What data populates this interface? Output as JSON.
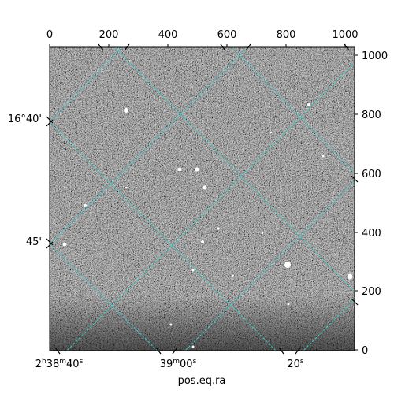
{
  "figure": {
    "xlabel": "pos.eq.ra",
    "frame_color": "#000000",
    "grid_color": "#2ad4d4",
    "image_colormap": "gray",
    "pixel_axes": {
      "top_ticks": [
        "0",
        "200",
        "400",
        "600",
        "800",
        "1000"
      ],
      "right_ticks": [
        "0",
        "200",
        "400",
        "600",
        "800",
        "1000"
      ]
    },
    "world_axes": {
      "ra_ticks": [
        {
          "h": "2",
          "m": "38",
          "s": "40"
        },
        {
          "m": "39",
          "s": "00"
        },
        {
          "s": "20"
        }
      ],
      "dec_ticks": [
        "16°40'",
        "45'"
      ]
    },
    "bright_sources": 20
  }
}
